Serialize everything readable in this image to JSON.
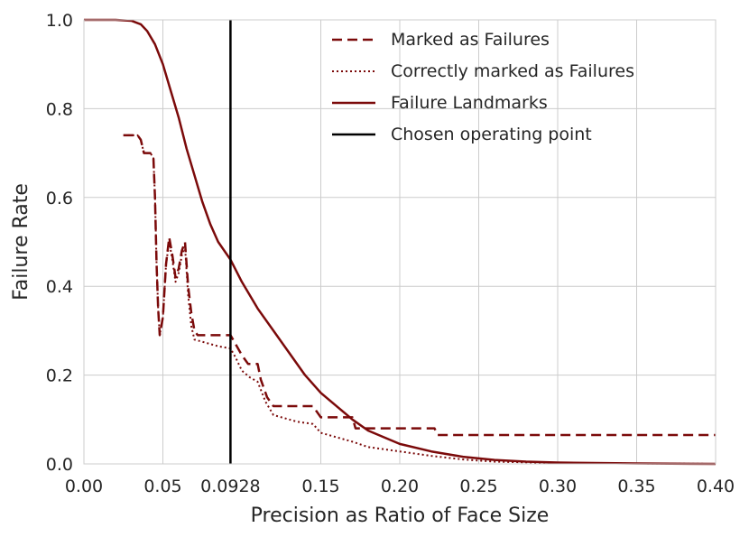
{
  "chart_data": {
    "type": "line",
    "title": "",
    "xlabel": "Precision as Ratio of Face Size",
    "ylabel": "Failure Rate",
    "xlim": [
      0.0,
      0.4
    ],
    "ylim": [
      0.0,
      1.0
    ],
    "grid": true,
    "legend_position": "top-right",
    "x_ticks": [
      {
        "value": 0.0,
        "label": "0.00"
      },
      {
        "value": 0.05,
        "label": "0.05"
      },
      {
        "value": 0.0928,
        "label": "0.0928"
      },
      {
        "value": 0.15,
        "label": "0.15"
      },
      {
        "value": 0.2,
        "label": "0.20"
      },
      {
        "value": 0.25,
        "label": "0.25"
      },
      {
        "value": 0.3,
        "label": "0.30"
      },
      {
        "value": 0.35,
        "label": "0.35"
      },
      {
        "value": 0.4,
        "label": "0.40"
      }
    ],
    "y_ticks": [
      {
        "value": 0.0,
        "label": "0.0"
      },
      {
        "value": 0.2,
        "label": "0.2"
      },
      {
        "value": 0.4,
        "label": "0.4"
      },
      {
        "value": 0.6,
        "label": "0.6"
      },
      {
        "value": 0.8,
        "label": "0.8"
      },
      {
        "value": 1.0,
        "label": "1.0"
      }
    ],
    "series": [
      {
        "name": "Marked as Failures",
        "style": "dashed",
        "color": "#7b0a0a",
        "points": [
          [
            0.025,
            0.74
          ],
          [
            0.034,
            0.74
          ],
          [
            0.036,
            0.73
          ],
          [
            0.038,
            0.7
          ],
          [
            0.04,
            0.7
          ],
          [
            0.042,
            0.7
          ],
          [
            0.044,
            0.69
          ],
          [
            0.045,
            0.6
          ],
          [
            0.046,
            0.45
          ],
          [
            0.047,
            0.35
          ],
          [
            0.048,
            0.29
          ],
          [
            0.05,
            0.33
          ],
          [
            0.052,
            0.45
          ],
          [
            0.054,
            0.51
          ],
          [
            0.056,
            0.47
          ],
          [
            0.058,
            0.42
          ],
          [
            0.06,
            0.44
          ],
          [
            0.062,
            0.48
          ],
          [
            0.064,
            0.5
          ],
          [
            0.066,
            0.4
          ],
          [
            0.068,
            0.34
          ],
          [
            0.07,
            0.3
          ],
          [
            0.072,
            0.29
          ],
          [
            0.0928,
            0.29
          ],
          [
            0.096,
            0.27
          ],
          [
            0.1,
            0.245
          ],
          [
            0.104,
            0.225
          ],
          [
            0.11,
            0.225
          ],
          [
            0.112,
            0.19
          ],
          [
            0.116,
            0.15
          ],
          [
            0.12,
            0.13
          ],
          [
            0.145,
            0.13
          ],
          [
            0.15,
            0.105
          ],
          [
            0.17,
            0.105
          ],
          [
            0.172,
            0.08
          ],
          [
            0.222,
            0.08
          ],
          [
            0.224,
            0.065
          ],
          [
            0.4,
            0.065
          ]
        ]
      },
      {
        "name": "Correctly marked as Failures",
        "style": "dotted",
        "color": "#7b0a0a",
        "points": [
          [
            0.025,
            0.74
          ],
          [
            0.034,
            0.74
          ],
          [
            0.036,
            0.73
          ],
          [
            0.038,
            0.7
          ],
          [
            0.04,
            0.7
          ],
          [
            0.042,
            0.7
          ],
          [
            0.044,
            0.69
          ],
          [
            0.045,
            0.6
          ],
          [
            0.046,
            0.45
          ],
          [
            0.047,
            0.35
          ],
          [
            0.048,
            0.29
          ],
          [
            0.05,
            0.33
          ],
          [
            0.052,
            0.45
          ],
          [
            0.054,
            0.5
          ],
          [
            0.056,
            0.46
          ],
          [
            0.058,
            0.41
          ],
          [
            0.06,
            0.43
          ],
          [
            0.062,
            0.47
          ],
          [
            0.064,
            0.49
          ],
          [
            0.066,
            0.38
          ],
          [
            0.068,
            0.31
          ],
          [
            0.07,
            0.28
          ],
          [
            0.075,
            0.275
          ],
          [
            0.085,
            0.265
          ],
          [
            0.0928,
            0.26
          ],
          [
            0.096,
            0.24
          ],
          [
            0.1,
            0.21
          ],
          [
            0.105,
            0.195
          ],
          [
            0.11,
            0.185
          ],
          [
            0.115,
            0.14
          ],
          [
            0.12,
            0.11
          ],
          [
            0.135,
            0.095
          ],
          [
            0.145,
            0.09
          ],
          [
            0.15,
            0.07
          ],
          [
            0.16,
            0.06
          ],
          [
            0.17,
            0.05
          ],
          [
            0.18,
            0.038
          ],
          [
            0.2,
            0.028
          ],
          [
            0.22,
            0.018
          ],
          [
            0.24,
            0.01
          ],
          [
            0.26,
            0.005
          ],
          [
            0.3,
            0.002
          ],
          [
            0.4,
            0.0
          ]
        ]
      },
      {
        "name": "Failure Landmarks",
        "style": "solid",
        "color": "#7b0a0a",
        "points": [
          [
            0.0,
            1.0
          ],
          [
            0.02,
            1.0
          ],
          [
            0.03,
            0.998
          ],
          [
            0.036,
            0.99
          ],
          [
            0.04,
            0.975
          ],
          [
            0.045,
            0.945
          ],
          [
            0.05,
            0.9
          ],
          [
            0.055,
            0.84
          ],
          [
            0.06,
            0.78
          ],
          [
            0.065,
            0.71
          ],
          [
            0.07,
            0.65
          ],
          [
            0.075,
            0.59
          ],
          [
            0.08,
            0.54
          ],
          [
            0.085,
            0.5
          ],
          [
            0.0928,
            0.46
          ],
          [
            0.1,
            0.41
          ],
          [
            0.11,
            0.35
          ],
          [
            0.12,
            0.3
          ],
          [
            0.13,
            0.25
          ],
          [
            0.14,
            0.2
          ],
          [
            0.15,
            0.16
          ],
          [
            0.16,
            0.13
          ],
          [
            0.17,
            0.1
          ],
          [
            0.18,
            0.075
          ],
          [
            0.2,
            0.045
          ],
          [
            0.22,
            0.028
          ],
          [
            0.24,
            0.016
          ],
          [
            0.26,
            0.009
          ],
          [
            0.28,
            0.005
          ],
          [
            0.3,
            0.003
          ],
          [
            0.35,
            0.001
          ],
          [
            0.4,
            0.0
          ]
        ]
      },
      {
        "name": "Chosen operating point",
        "style": "vertical-line",
        "color": "#000000",
        "x": 0.0928
      }
    ]
  }
}
